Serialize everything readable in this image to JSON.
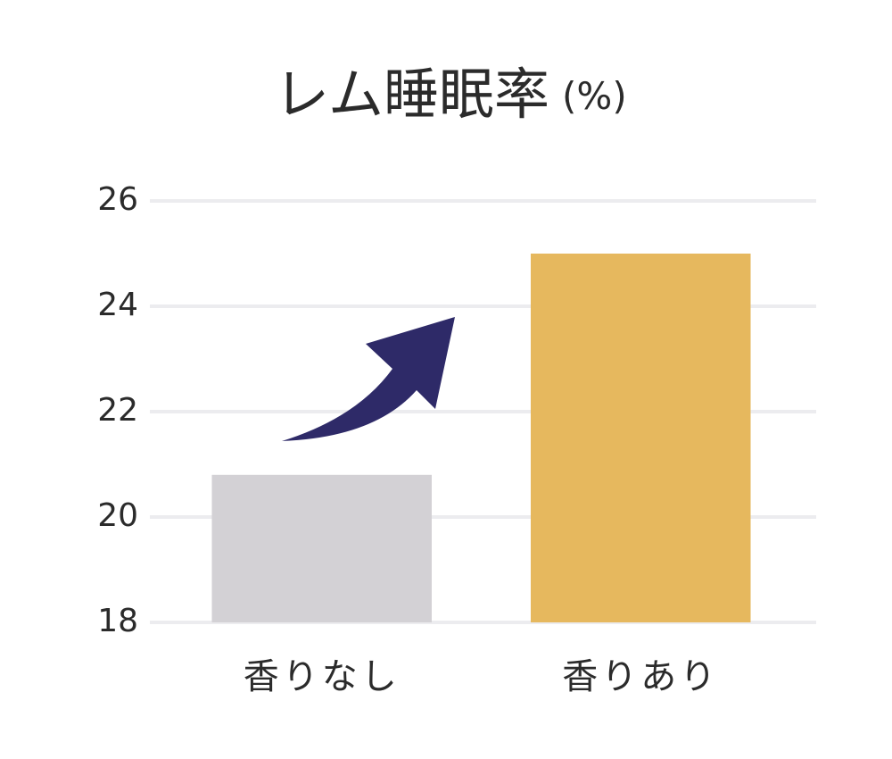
{
  "chart_data": {
    "type": "bar",
    "title": "レム睡眠率",
    "unit": "(%)",
    "categories": [
      "香りなし",
      "香りあり"
    ],
    "values": [
      20.8,
      25.0
    ],
    "colors": [
      "#d3d1d5",
      "#e6b85e"
    ],
    "ylim": [
      18,
      26
    ],
    "yticks": [
      18,
      20,
      22,
      24,
      26
    ],
    "grid": true
  }
}
